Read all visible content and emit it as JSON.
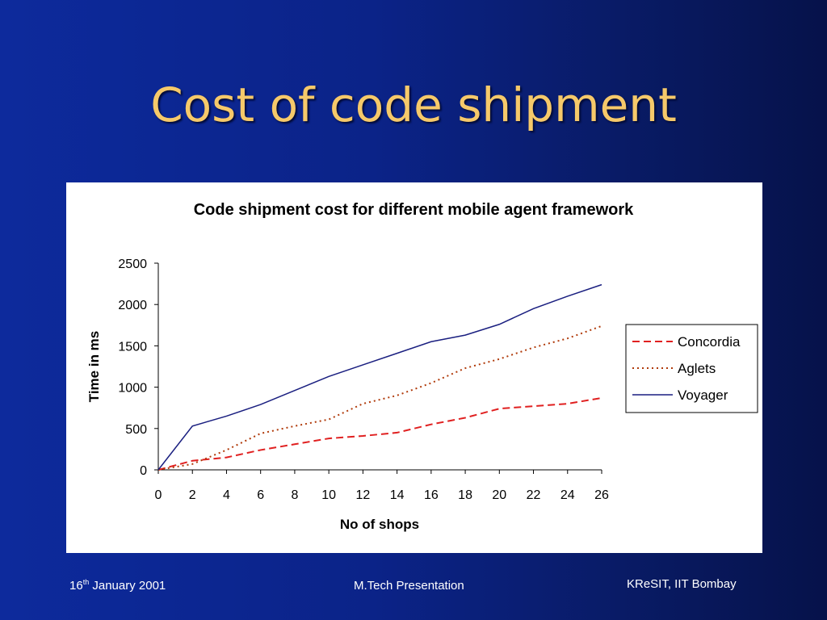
{
  "slide": {
    "title": "Cost of code shipment",
    "footer": {
      "date_day": "16",
      "date_suffix": "th",
      "date_rest": " January 2001",
      "center": "M.Tech Presentation",
      "right": "KReSIT, IIT Bombay"
    },
    "colors": {
      "background": "#0b2388",
      "title": "#f6c96a",
      "panel": "#ffffff"
    }
  },
  "chart_data": {
    "type": "line",
    "title": "Code shipment cost for different mobile agent framework",
    "xlabel": "No of shops",
    "ylabel": "Time in ms",
    "xlim": [
      0,
      26
    ],
    "ylim": [
      0,
      2500
    ],
    "xticks": [
      0,
      2,
      4,
      6,
      8,
      10,
      12,
      14,
      16,
      18,
      20,
      22,
      24,
      26
    ],
    "yticks": [
      0,
      500,
      1000,
      1500,
      2000,
      2500
    ],
    "grid": false,
    "legend": "right",
    "x": [
      0,
      2,
      4,
      6,
      8,
      10,
      12,
      14,
      16,
      18,
      20,
      22,
      24,
      26
    ],
    "series": [
      {
        "name": "Concordia",
        "style": "dashed",
        "color": "#e02020",
        "values": [
          0,
          110,
          150,
          240,
          310,
          380,
          410,
          450,
          550,
          630,
          740,
          770,
          800,
          870
        ]
      },
      {
        "name": "Aglets",
        "style": "dotted",
        "color": "#b03a0a",
        "values": [
          0,
          70,
          240,
          440,
          530,
          610,
          800,
          900,
          1050,
          1230,
          1340,
          1480,
          1590,
          1740
        ]
      },
      {
        "name": "Voyager",
        "style": "solid",
        "color": "#1a1f80",
        "values": [
          0,
          530,
          650,
          790,
          960,
          1130,
          1270,
          1410,
          1550,
          1630,
          1760,
          1950,
          2100,
          2240
        ]
      }
    ]
  }
}
